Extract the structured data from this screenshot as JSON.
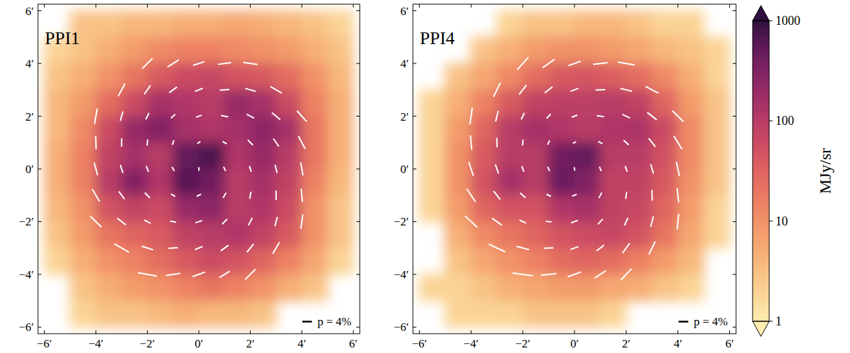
{
  "chart_data": [
    {
      "type": "heatmap",
      "title": "PPI1",
      "xlim": [
        -6.25,
        6.25
      ],
      "ylim": [
        -6.25,
        6.25
      ],
      "xticks": [
        {
          "value": -6,
          "label": "−6′"
        },
        {
          "value": -4,
          "label": "−4′"
        },
        {
          "value": -2,
          "label": "−2′"
        },
        {
          "value": 0,
          "label": "0′"
        },
        {
          "value": 2,
          "label": "2′"
        },
        {
          "value": 4,
          "label": "4′"
        },
        {
          "value": 6,
          "label": "6′"
        }
      ],
      "yticks": [
        {
          "value": -6,
          "label": "−6′"
        },
        {
          "value": -4,
          "label": "−4′"
        },
        {
          "value": -2,
          "label": "−2′"
        },
        {
          "value": 0,
          "label": "0′"
        },
        {
          "value": 2,
          "label": "2′"
        },
        {
          "value": 4,
          "label": "4′"
        },
        {
          "value": 6,
          "label": "6′"
        }
      ],
      "cells": {
        "x": [
          -5.5,
          -4.5,
          -3.5,
          -2.5,
          -1.5,
          -0.5,
          0.5,
          1.5,
          2.5,
          3.5,
          4.5,
          5.5
        ],
        "y": [
          5.5,
          4.5,
          3.5,
          2.5,
          1.5,
          0.5,
          -0.5,
          -1.5,
          -2.5,
          -3.5,
          -4.5,
          -5.5
        ],
        "values": [
          [
            null,
            3,
            3,
            4,
            4,
            5,
            5,
            6,
            5,
            4,
            3,
            2
          ],
          [
            2,
            3,
            5,
            8,
            12,
            15,
            15,
            12,
            10,
            8,
            5,
            3
          ],
          [
            3,
            5,
            10,
            20,
            40,
            60,
            70,
            50,
            40,
            25,
            10,
            4
          ],
          [
            4,
            8,
            25,
            60,
            150,
            120,
            100,
            200,
            150,
            60,
            15,
            5
          ],
          [
            4,
            12,
            60,
            200,
            300,
            150,
            120,
            150,
            250,
            150,
            20,
            5
          ],
          [
            5,
            15,
            80,
            150,
            100,
            500,
            700,
            120,
            200,
            100,
            20,
            5
          ],
          [
            5,
            15,
            100,
            300,
            120,
            600,
            400,
            100,
            150,
            80,
            15,
            4
          ],
          [
            4,
            10,
            50,
            80,
            60,
            200,
            250,
            100,
            120,
            60,
            10,
            3
          ],
          [
            3,
            8,
            20,
            30,
            40,
            80,
            100,
            120,
            80,
            40,
            10,
            3
          ],
          [
            2,
            5,
            10,
            15,
            25,
            40,
            60,
            50,
            30,
            15,
            6,
            2
          ],
          [
            null,
            3,
            5,
            8,
            10,
            15,
            20,
            15,
            10,
            5,
            3,
            null
          ],
          [
            null,
            2,
            3,
            3,
            4,
            5,
            4,
            4,
            3,
            null,
            null,
            null
          ]
        ]
      },
      "vectors": {
        "x": [
          -2,
          -1,
          0,
          1,
          2,
          -3,
          -2,
          -1,
          0,
          1,
          2,
          3,
          -4,
          -3,
          -2,
          -1,
          0,
          1,
          2,
          3,
          4,
          -4,
          -3,
          -2,
          -1,
          0,
          1,
          2,
          3,
          4,
          -4,
          -3,
          -2,
          -1,
          0,
          1,
          2,
          3,
          4,
          -4,
          -3,
          -2,
          -1,
          0,
          1,
          2,
          3,
          4,
          -4,
          -3,
          -2,
          -1,
          0,
          1,
          2,
          3,
          4,
          -3,
          -2,
          -1,
          0,
          1,
          2,
          3,
          -2,
          -1,
          0,
          1,
          2
        ],
        "y": [
          4,
          4,
          4,
          4,
          4,
          3,
          3,
          3,
          3,
          3,
          3,
          3,
          2,
          2,
          2,
          2,
          2,
          2,
          2,
          2,
          2,
          1,
          1,
          1,
          1,
          1,
          1,
          1,
          1,
          1,
          0,
          0,
          0,
          0,
          0,
          0,
          0,
          0,
          0,
          -1,
          -1,
          -1,
          -1,
          -1,
          -1,
          -1,
          -1,
          -1,
          -2,
          -2,
          -2,
          -2,
          -2,
          -2,
          -2,
          -2,
          -2,
          -3,
          -3,
          -3,
          -3,
          -3,
          -3,
          -3,
          -4,
          -4,
          -4,
          -4,
          -4
        ],
        "angle": [
          45,
          32,
          18,
          8,
          172,
          62,
          55,
          36,
          22,
          4,
          164,
          150,
          80,
          74,
          63,
          45,
          18,
          170,
          152,
          140,
          132,
          92,
          90,
          85,
          70,
          30,
          150,
          135,
          125,
          118,
          105,
          108,
          112,
          120,
          95,
          115,
          108,
          104,
          100,
          120,
          126,
          135,
          150,
          25,
          60,
          80,
          90,
          95,
          135,
          142,
          152,
          170,
          18,
          45,
          62,
          75,
          82,
          150,
          162,
          4,
          22,
          36,
          52,
          60,
          170,
          8,
          20,
          32,
          45
        ],
        "p": [
          6,
          5.5,
          5,
          5.5,
          6,
          6,
          4.5,
          4,
          3.5,
          4,
          4.5,
          5.5,
          6.5,
          4,
          3,
          2.5,
          2.5,
          3,
          3.5,
          4.5,
          6,
          5.5,
          3.5,
          2.5,
          2,
          1.5,
          2,
          3,
          4,
          6,
          5.5,
          3.5,
          2.5,
          2,
          1.5,
          2,
          2.5,
          3.5,
          5.5,
          6,
          4,
          3,
          2,
          2,
          2.5,
          3,
          4,
          5.5,
          6.5,
          4.5,
          3,
          2.5,
          3,
          3,
          3.5,
          4,
          6,
          7,
          5,
          4,
          3.5,
          4,
          4.5,
          5.5,
          8,
          6,
          5.5,
          5,
          6
        ]
      },
      "p_scale": {
        "value": 4,
        "label": "p = 4%"
      }
    },
    {
      "type": "heatmap",
      "title": "PPI4",
      "xlim": [
        -6.25,
        6.25
      ],
      "ylim": [
        -6.25,
        6.25
      ],
      "xticks": [
        {
          "value": -6,
          "label": "−6′"
        },
        {
          "value": -4,
          "label": "−4′"
        },
        {
          "value": -2,
          "label": "−2′"
        },
        {
          "value": 0,
          "label": "0′"
        },
        {
          "value": 2,
          "label": "2′"
        },
        {
          "value": 4,
          "label": "4′"
        },
        {
          "value": 6,
          "label": "6′"
        }
      ],
      "yticks": [
        {
          "value": -6,
          "label": "−6′"
        },
        {
          "value": -4,
          "label": "−4′"
        },
        {
          "value": -2,
          "label": "−2′"
        },
        {
          "value": 0,
          "label": "0′"
        },
        {
          "value": 2,
          "label": "2′"
        },
        {
          "value": 4,
          "label": "4′"
        },
        {
          "value": 6,
          "label": "6′"
        }
      ],
      "cells": {
        "x": [
          -5.5,
          -4.5,
          -3.5,
          -2.5,
          -1.5,
          -0.5,
          0.5,
          1.5,
          2.5,
          3.5,
          4.5,
          5.5
        ],
        "y": [
          5.5,
          4.5,
          3.5,
          2.5,
          1.5,
          0.5,
          -0.5,
          -1.5,
          -2.5,
          -3.5,
          -4.5,
          -5.5
        ],
        "values": [
          [
            null,
            null,
            null,
            2,
            3,
            3,
            4,
            4,
            3,
            2,
            2,
            null
          ],
          [
            null,
            null,
            3,
            5,
            8,
            10,
            10,
            8,
            6,
            4,
            3,
            2
          ],
          [
            null,
            3,
            6,
            12,
            25,
            40,
            45,
            35,
            25,
            12,
            5,
            2
          ],
          [
            2,
            5,
            15,
            40,
            80,
            90,
            90,
            100,
            80,
            30,
            8,
            3
          ],
          [
            2,
            8,
            30,
            100,
            150,
            120,
            100,
            120,
            130,
            60,
            12,
            3
          ],
          [
            2,
            10,
            40,
            100,
            100,
            400,
            500,
            100,
            100,
            50,
            12,
            3
          ],
          [
            2,
            10,
            50,
            150,
            100,
            450,
            300,
            80,
            80,
            40,
            10,
            3
          ],
          [
            2,
            8,
            30,
            50,
            50,
            120,
            150,
            80,
            70,
            30,
            8,
            2
          ],
          [
            null,
            5,
            12,
            20,
            30,
            50,
            60,
            70,
            50,
            20,
            6,
            2
          ],
          [
            null,
            3,
            6,
            10,
            15,
            25,
            30,
            25,
            15,
            8,
            4,
            null
          ],
          [
            2,
            2,
            3,
            5,
            6,
            8,
            8,
            6,
            5,
            3,
            2,
            null
          ],
          [
            null,
            2,
            2,
            2,
            3,
            3,
            3,
            2,
            null,
            null,
            null,
            null
          ]
        ]
      },
      "vectors": {
        "x": [
          -2,
          -1,
          0,
          1,
          2,
          -3,
          -2,
          -1,
          0,
          1,
          2,
          3,
          -4,
          -3,
          -2,
          -1,
          0,
          1,
          2,
          3,
          4,
          -4,
          -3,
          -2,
          -1,
          0,
          1,
          2,
          3,
          4,
          -4,
          -3,
          -2,
          -1,
          0,
          1,
          2,
          3,
          4,
          -4,
          -3,
          -2,
          -1,
          0,
          1,
          2,
          3,
          4,
          -4,
          -3,
          -2,
          -1,
          0,
          1,
          2,
          3,
          4,
          -3,
          -2,
          -1,
          0,
          1,
          2,
          3,
          -2,
          -1,
          0,
          1,
          2
        ],
        "y": [
          4,
          4,
          4,
          4,
          4,
          3,
          3,
          3,
          3,
          3,
          3,
          3,
          2,
          2,
          2,
          2,
          2,
          2,
          2,
          2,
          2,
          1,
          1,
          1,
          1,
          1,
          1,
          1,
          1,
          1,
          0,
          0,
          0,
          0,
          0,
          0,
          0,
          0,
          0,
          -1,
          -1,
          -1,
          -1,
          -1,
          -1,
          -1,
          -1,
          -1,
          -2,
          -2,
          -2,
          -2,
          -2,
          -2,
          -2,
          -2,
          -2,
          -3,
          -3,
          -3,
          -3,
          -3,
          -3,
          -3,
          -4,
          -4,
          -4,
          -4,
          -4
        ],
        "angle": [
          48,
          35,
          20,
          6,
          170,
          64,
          52,
          38,
          20,
          2,
          166,
          152,
          82,
          76,
          65,
          47,
          20,
          172,
          155,
          142,
          135,
          95,
          92,
          84,
          66,
          25,
          152,
          137,
          128,
          122,
          108,
          110,
          110,
          115,
          100,
          112,
          110,
          106,
          102,
          124,
          128,
          137,
          155,
          22,
          62,
          82,
          92,
          96,
          137,
          144,
          155,
          172,
          20,
          47,
          65,
          76,
          84,
          155,
          165,
          2,
          20,
          38,
          54,
          64,
          172,
          6,
          20,
          34,
          47
        ],
        "p": [
          7,
          6,
          5.5,
          6,
          7,
          6.5,
          5,
          4,
          3.5,
          4,
          5,
          6,
          7,
          4.5,
          3,
          2.5,
          2.5,
          3,
          3.5,
          5,
          6.5,
          6,
          4,
          2.5,
          2,
          1.5,
          2,
          3,
          4.5,
          6.5,
          6,
          4,
          2.5,
          2,
          1.5,
          2,
          2.5,
          4,
          6,
          6.5,
          4.5,
          3,
          2,
          2,
          2.5,
          3,
          4.5,
          6,
          7,
          5,
          3,
          2.5,
          3,
          3,
          3.5,
          4.5,
          6.5,
          7.5,
          5.5,
          4,
          3.5,
          4,
          5,
          6,
          8.5,
          6.5,
          6,
          5.5,
          6.5
        ]
      },
      "p_scale": {
        "value": 4,
        "label": "p = 4%"
      },
      "colorbar": {
        "lim": [
          1,
          1000
        ],
        "ticks": [
          1,
          10,
          100,
          1000
        ],
        "label": "MJy/sr",
        "log": true
      }
    }
  ]
}
